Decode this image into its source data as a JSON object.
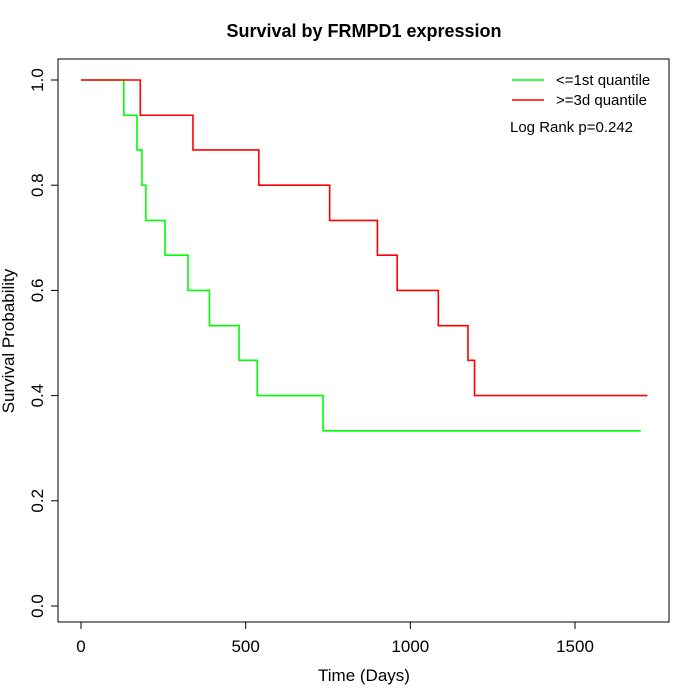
{
  "chart_data": {
    "type": "line",
    "step": true,
    "title": "Survival by FRMPD1 expression",
    "xlabel": "Time (Days)",
    "ylabel": "Survival Probability",
    "xlim": [
      0,
      1780
    ],
    "ylim": [
      0,
      1.0
    ],
    "x_ticks": [
      0,
      500,
      1000,
      1500
    ],
    "x_tick_labels": [
      "0",
      "500",
      "1000",
      "1500"
    ],
    "y_ticks": [
      0,
      0.2,
      0.4,
      0.6,
      0.8,
      1.0
    ],
    "y_tick_labels": [
      "0.0",
      "0.2",
      "0.4",
      "0.6",
      "0.8",
      "1.0"
    ],
    "legend_position": "top-right",
    "annotation": "Log Rank p=0.242",
    "series": [
      {
        "name": "<=1st quantile",
        "color": "#00ff00",
        "x": [
          0,
          130,
          170,
          185,
          197,
          255,
          325,
          390,
          480,
          535,
          735,
          1700
        ],
        "y": [
          1.0,
          0.933,
          0.867,
          0.8,
          0.733,
          0.667,
          0.6,
          0.533,
          0.467,
          0.4,
          0.333,
          0.333
        ]
      },
      {
        "name": ">=3d quantile",
        "color": "#ff0000",
        "x": [
          0,
          180,
          340,
          540,
          755,
          900,
          960,
          1085,
          1175,
          1195,
          1720
        ],
        "y": [
          1.0,
          0.933,
          0.867,
          0.8,
          0.733,
          0.667,
          0.6,
          0.533,
          0.467,
          0.4,
          0.4
        ]
      }
    ]
  }
}
